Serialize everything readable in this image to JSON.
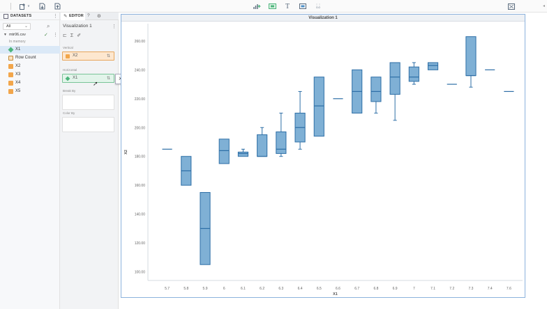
{
  "toolbar": {
    "icons": [
      "add-dataset-icon",
      "dropdown-chevron-icon",
      "import-data-icon",
      "export-data-icon",
      "insert-chart-icon",
      "insert-image-icon",
      "insert-text-icon",
      "insert-media-icon",
      "insert-grid-icon",
      "fit-screen-icon"
    ],
    "text_icon_glyph": "T",
    "grid_icon_label": "0.0",
    "dropdown_glyph": "v"
  },
  "datasets": {
    "title": "DATASETS",
    "filter_value": "All",
    "file_name": "mtr06.csv",
    "file_status": "In memory",
    "fields": [
      {
        "label": "X1",
        "kind": "dimension",
        "selected": true
      },
      {
        "label": "Row Count",
        "kind": "count",
        "selected": false
      },
      {
        "label": "X2",
        "kind": "measure",
        "selected": false
      },
      {
        "label": "X3",
        "kind": "measure",
        "selected": false
      },
      {
        "label": "X4",
        "kind": "measure",
        "selected": false
      },
      {
        "label": "X5",
        "kind": "measure",
        "selected": false
      }
    ]
  },
  "editor": {
    "tab_label": "EDITOR",
    "tab2_glyph": "?",
    "tab3_glyph": "⚙",
    "viz_name": "Visualization 1",
    "vertical": {
      "section": "Vertical",
      "value": "X2"
    },
    "horizontal": {
      "section": "Horizontal",
      "value": "X1"
    },
    "break_by": {
      "section": "Break By"
    },
    "color_by": {
      "section": "Color By"
    },
    "tooltip": "X1"
  },
  "colors": {
    "box_fill": "#7fb0d5",
    "box_stroke": "#2d6ea6",
    "accent": "#4c8fc7"
  },
  "chart_data": {
    "type": "boxplot",
    "title": "Visualization 1",
    "xlabel": "X1",
    "ylabel": "X2",
    "ylim": [
      94,
      272
    ],
    "yticks": [
      100,
      120,
      140,
      160,
      180,
      200,
      220,
      240,
      260
    ],
    "ytick_labels": [
      "100.00",
      "120.00",
      "140.00",
      "160.00",
      "180.00",
      "200.00",
      "220.00",
      "240.00",
      "260.00"
    ],
    "categories": [
      "5.7",
      "5.8",
      "5.9",
      "6",
      "6.1",
      "6.2",
      "6.3",
      "6.4",
      "6.5",
      "6.6",
      "6.7",
      "6.8",
      "6.9",
      "7",
      "7.1",
      "7.2",
      "7.3",
      "7.4",
      "7.6"
    ],
    "boxes": [
      {
        "min": 185,
        "q1": 185,
        "median": 185,
        "q3": 185,
        "max": 185
      },
      {
        "min": 160,
        "q1": 160,
        "median": 170,
        "q3": 180,
        "max": 180
      },
      {
        "min": 105,
        "q1": 105,
        "median": 130,
        "q3": 155,
        "max": 155
      },
      {
        "min": 175,
        "q1": 175,
        "median": 184,
        "q3": 192,
        "max": 192
      },
      {
        "min": 180,
        "q1": 180,
        "median": 182,
        "q3": 183,
        "max": 185
      },
      {
        "min": 180,
        "q1": 180,
        "median": 180,
        "q3": 195,
        "max": 200
      },
      {
        "min": 180,
        "q1": 182,
        "median": 185,
        "q3": 197,
        "max": 210
      },
      {
        "min": 185,
        "q1": 190,
        "median": 200,
        "q3": 210,
        "max": 225
      },
      {
        "min": 194,
        "q1": 194,
        "median": 215,
        "q3": 235,
        "max": 235
      },
      {
        "min": 220,
        "q1": 220,
        "median": 220,
        "q3": 220,
        "max": 220
      },
      {
        "min": 210,
        "q1": 210,
        "median": 225,
        "q3": 240,
        "max": 240
      },
      {
        "min": 210,
        "q1": 218,
        "median": 225,
        "q3": 235,
        "max": 235
      },
      {
        "min": 205,
        "q1": 223,
        "median": 235,
        "q3": 245,
        "max": 245
      },
      {
        "min": 230,
        "q1": 232,
        "median": 235,
        "q3": 242,
        "max": 245
      },
      {
        "min": 240,
        "q1": 240,
        "median": 243,
        "q3": 245,
        "max": 245
      },
      {
        "min": 230,
        "q1": 230,
        "median": 230,
        "q3": 230,
        "max": 230
      },
      {
        "min": 228,
        "q1": 236,
        "median": 236,
        "q3": 263,
        "max": 263
      },
      {
        "min": 240,
        "q1": 240,
        "median": 240,
        "q3": 240,
        "max": 240
      },
      {
        "min": 225,
        "q1": 225,
        "median": 225,
        "q3": 225,
        "max": 225
      }
    ],
    "grid": false,
    "legend": "none"
  }
}
